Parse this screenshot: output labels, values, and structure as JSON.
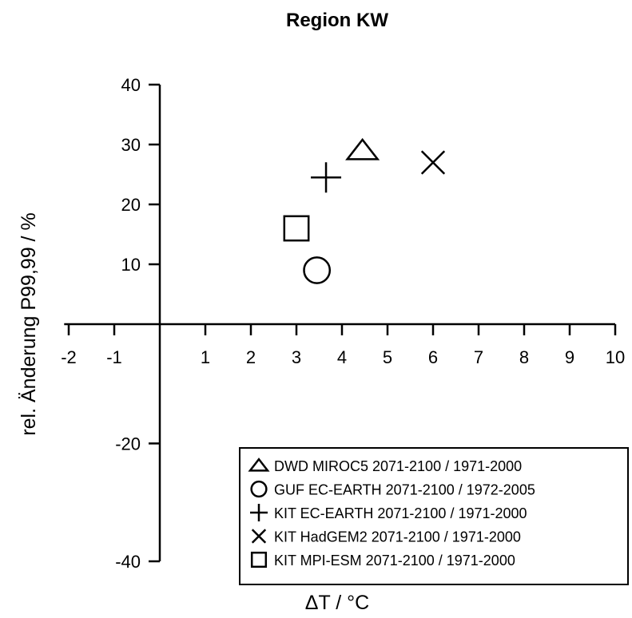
{
  "chart_data": {
    "type": "scatter",
    "title": "Region KW",
    "xlabel": "ΔT / °C",
    "ylabel": "rel. Änderung P99,99 / %",
    "xlim": [
      -2.5,
      10
    ],
    "x_ticks": [
      -2,
      -1,
      1,
      2,
      3,
      4,
      5,
      6,
      7,
      8,
      9,
      10
    ],
    "y_ticks": [
      40,
      30,
      20,
      10,
      -20,
      -40
    ],
    "y_scale_note": "broken scale",
    "legend_position": "bottom-right",
    "grid": false,
    "series": [
      {
        "name": "DWD MIROC5 2071-2100 / 1971-2000",
        "marker": "triangle",
        "x": 4.45,
        "y": 29
      },
      {
        "name": "GUF EC-EARTH 2071-2100 / 1972-2005",
        "marker": "circle",
        "x": 3.45,
        "y": 9
      },
      {
        "name": "KIT EC-EARTH 2071-2100 / 1971-2000",
        "marker": "plus",
        "x": 3.65,
        "y": 24.5
      },
      {
        "name": "KIT HadGEM2 2071-2100 / 1971-2000",
        "marker": "x",
        "x": 6.0,
        "y": 27
      },
      {
        "name": "KIT MPI-ESM 2071-2100 / 1971-2000",
        "marker": "square",
        "x": 3.0,
        "y": 16
      }
    ]
  }
}
